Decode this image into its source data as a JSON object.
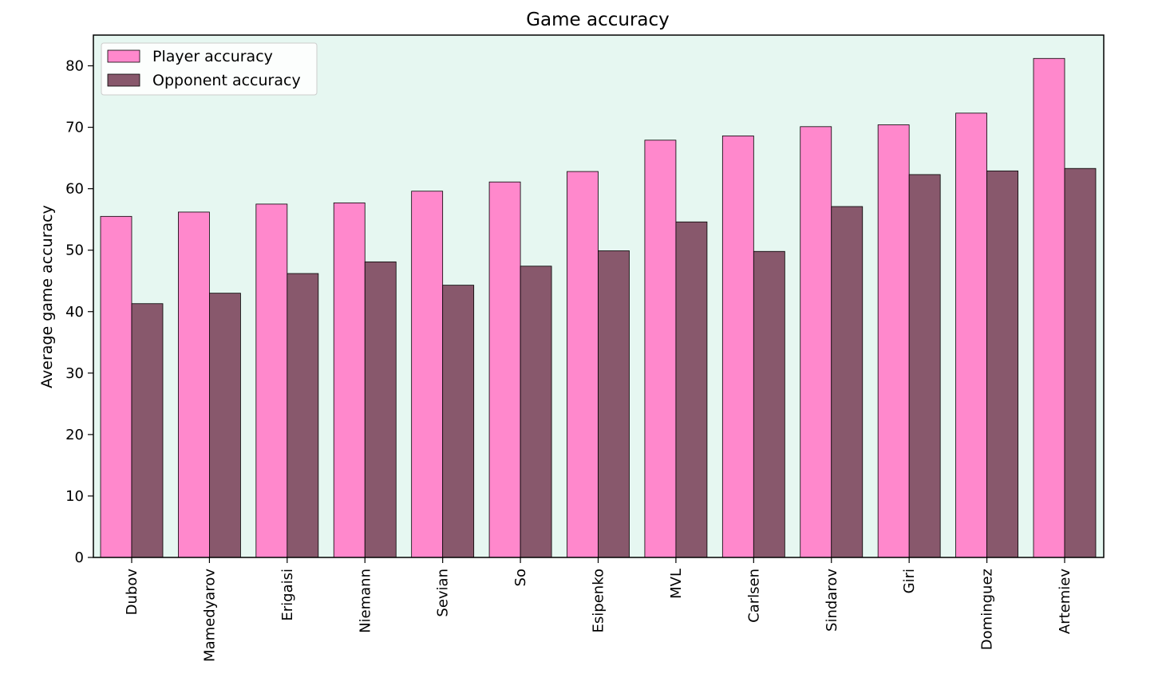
{
  "chart_data": {
    "type": "bar",
    "title": "Game accuracy",
    "xlabel": "",
    "ylabel": "Average game accuracy",
    "ylim": [
      0,
      85
    ],
    "yticks": [
      0,
      10,
      20,
      30,
      40,
      50,
      60,
      70,
      80
    ],
    "grid": false,
    "legend_position": "top-left",
    "background_color": "#e6f7f1",
    "categories": [
      "Dubov",
      "Mamedyarov",
      "Erigaisi",
      "Niemann",
      "Sevian",
      "So",
      "Esipenko",
      "MVL",
      "Carlsen",
      "Sindarov",
      "Giri",
      "Dominguez",
      "Artemiev"
    ],
    "series": [
      {
        "name": "Player accuracy",
        "color": "#ff88cc",
        "values": [
          55.5,
          56.2,
          57.5,
          57.7,
          59.6,
          61.1,
          62.8,
          67.9,
          68.6,
          70.1,
          70.4,
          72.3,
          81.2
        ]
      },
      {
        "name": "Opponent accuracy",
        "color": "#88586c",
        "values": [
          41.3,
          43.0,
          46.2,
          48.1,
          44.3,
          47.4,
          49.9,
          54.6,
          49.8,
          57.1,
          62.3,
          62.9,
          63.3
        ]
      }
    ]
  }
}
